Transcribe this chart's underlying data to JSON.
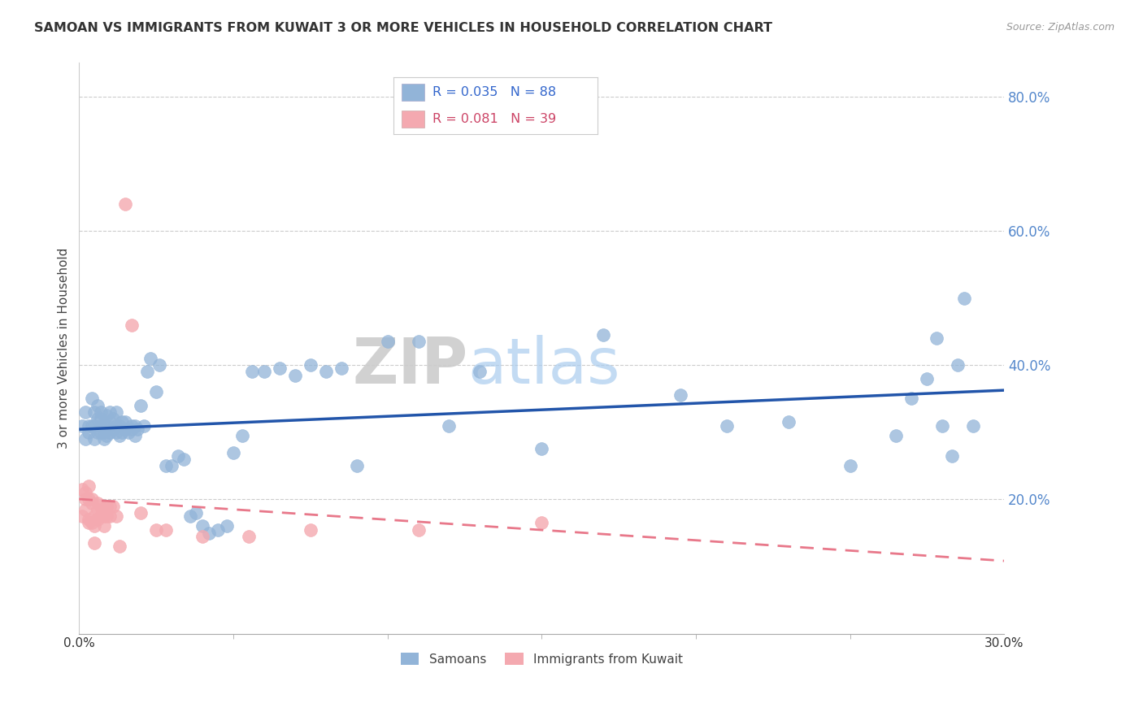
{
  "title": "SAMOAN VS IMMIGRANTS FROM KUWAIT 3 OR MORE VEHICLES IN HOUSEHOLD CORRELATION CHART",
  "source": "Source: ZipAtlas.com",
  "ylabel": "3 or more Vehicles in Household",
  "right_yticks": [
    "80.0%",
    "60.0%",
    "40.0%",
    "20.0%"
  ],
  "right_ytick_vals": [
    0.8,
    0.6,
    0.4,
    0.2
  ],
  "x_min": 0.0,
  "x_max": 0.3,
  "y_min": 0.0,
  "y_max": 0.85,
  "watermark_zip": "ZIP",
  "watermark_atlas": "atlas",
  "legend_label_blue": "Samoans",
  "legend_label_pink": "Immigrants from Kuwait",
  "blue_color": "#92B4D8",
  "pink_color": "#F4A9B0",
  "blue_line_color": "#2255AA",
  "pink_line_color": "#E8788A",
  "blue_r": "R = 0.035",
  "blue_n": "N = 88",
  "pink_r": "R = 0.081",
  "pink_n": "N = 39",
  "samoans_x": [
    0.001,
    0.002,
    0.002,
    0.003,
    0.003,
    0.004,
    0.004,
    0.005,
    0.005,
    0.005,
    0.006,
    0.006,
    0.006,
    0.007,
    0.007,
    0.007,
    0.007,
    0.008,
    0.008,
    0.008,
    0.009,
    0.009,
    0.009,
    0.01,
    0.01,
    0.01,
    0.011,
    0.011,
    0.012,
    0.012,
    0.012,
    0.013,
    0.013,
    0.014,
    0.014,
    0.015,
    0.015,
    0.016,
    0.017,
    0.017,
    0.018,
    0.018,
    0.019,
    0.02,
    0.021,
    0.022,
    0.023,
    0.025,
    0.026,
    0.028,
    0.03,
    0.032,
    0.034,
    0.036,
    0.038,
    0.04,
    0.042,
    0.045,
    0.048,
    0.05,
    0.053,
    0.056,
    0.06,
    0.065,
    0.07,
    0.075,
    0.08,
    0.085,
    0.09,
    0.1,
    0.11,
    0.12,
    0.13,
    0.15,
    0.17,
    0.195,
    0.21,
    0.23,
    0.25,
    0.265,
    0.27,
    0.275,
    0.278,
    0.28,
    0.283,
    0.285,
    0.287,
    0.29
  ],
  "samoans_y": [
    0.31,
    0.33,
    0.29,
    0.31,
    0.3,
    0.35,
    0.31,
    0.31,
    0.29,
    0.33,
    0.34,
    0.3,
    0.32,
    0.3,
    0.32,
    0.31,
    0.33,
    0.29,
    0.31,
    0.3,
    0.31,
    0.325,
    0.295,
    0.315,
    0.3,
    0.33,
    0.305,
    0.32,
    0.3,
    0.33,
    0.31,
    0.31,
    0.295,
    0.3,
    0.315,
    0.305,
    0.315,
    0.3,
    0.31,
    0.305,
    0.31,
    0.295,
    0.305,
    0.34,
    0.31,
    0.39,
    0.41,
    0.36,
    0.4,
    0.25,
    0.25,
    0.265,
    0.26,
    0.175,
    0.18,
    0.16,
    0.15,
    0.155,
    0.16,
    0.27,
    0.295,
    0.39,
    0.39,
    0.395,
    0.385,
    0.4,
    0.39,
    0.395,
    0.25,
    0.435,
    0.435,
    0.31,
    0.39,
    0.275,
    0.445,
    0.355,
    0.31,
    0.315,
    0.25,
    0.295,
    0.35,
    0.38,
    0.44,
    0.31,
    0.265,
    0.4,
    0.5,
    0.31
  ],
  "kuwait_x": [
    0.001,
    0.001,
    0.002,
    0.002,
    0.002,
    0.003,
    0.003,
    0.003,
    0.003,
    0.004,
    0.004,
    0.004,
    0.005,
    0.005,
    0.005,
    0.006,
    0.006,
    0.006,
    0.007,
    0.007,
    0.008,
    0.008,
    0.009,
    0.009,
    0.01,
    0.01,
    0.011,
    0.012,
    0.013,
    0.015,
    0.017,
    0.02,
    0.025,
    0.028,
    0.04,
    0.055,
    0.075,
    0.11,
    0.15
  ],
  "kuwait_y": [
    0.215,
    0.175,
    0.2,
    0.185,
    0.21,
    0.17,
    0.2,
    0.22,
    0.165,
    0.195,
    0.165,
    0.2,
    0.135,
    0.16,
    0.175,
    0.185,
    0.17,
    0.195,
    0.175,
    0.19,
    0.175,
    0.16,
    0.19,
    0.175,
    0.19,
    0.175,
    0.19,
    0.175,
    0.13,
    0.64,
    0.46,
    0.18,
    0.155,
    0.155,
    0.145,
    0.145,
    0.155,
    0.155,
    0.165
  ]
}
